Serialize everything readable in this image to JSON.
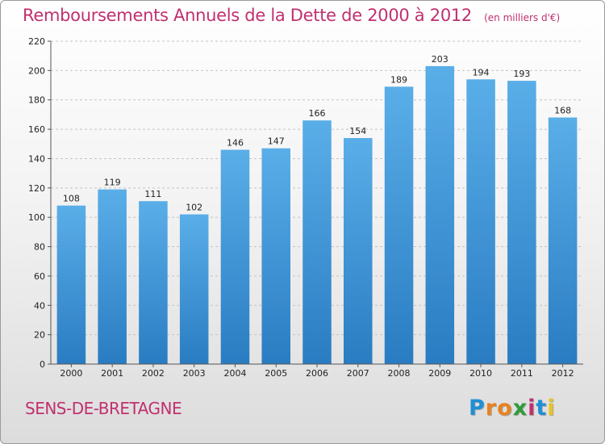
{
  "chart_data": {
    "type": "bar",
    "title": "Remboursements Annuels de la Dette de 2000 à 2012",
    "subtitle": "(en milliers d'€)",
    "xlabel": "",
    "ylabel": "",
    "categories": [
      "2000",
      "2001",
      "2002",
      "2003",
      "2004",
      "2005",
      "2006",
      "2007",
      "2008",
      "2009",
      "2010",
      "2011",
      "2012"
    ],
    "values": [
      108,
      119,
      111,
      102,
      146,
      147,
      166,
      154,
      189,
      203,
      194,
      193,
      168
    ],
    "ylim": [
      0,
      220
    ],
    "yticks": [
      0,
      20,
      40,
      60,
      80,
      100,
      120,
      140,
      160,
      180,
      200,
      220
    ],
    "grid": true,
    "legend": "none",
    "bar_color_top": "#5aaee8",
    "bar_color_bottom": "#2a7cc2"
  },
  "footer": {
    "commune": "SENS-DE-BRETAGNE",
    "brand_letters": [
      "P",
      "r",
      "o",
      "x",
      "i",
      "t",
      "i"
    ],
    "brand_colors": [
      "#1f8fd6",
      "#e8821e",
      "#e8821e",
      "#2e9c3a",
      "#c0306f",
      "#1f8fd6",
      "#e8c41e"
    ]
  },
  "colors": {
    "accent": "#c0306f"
  }
}
